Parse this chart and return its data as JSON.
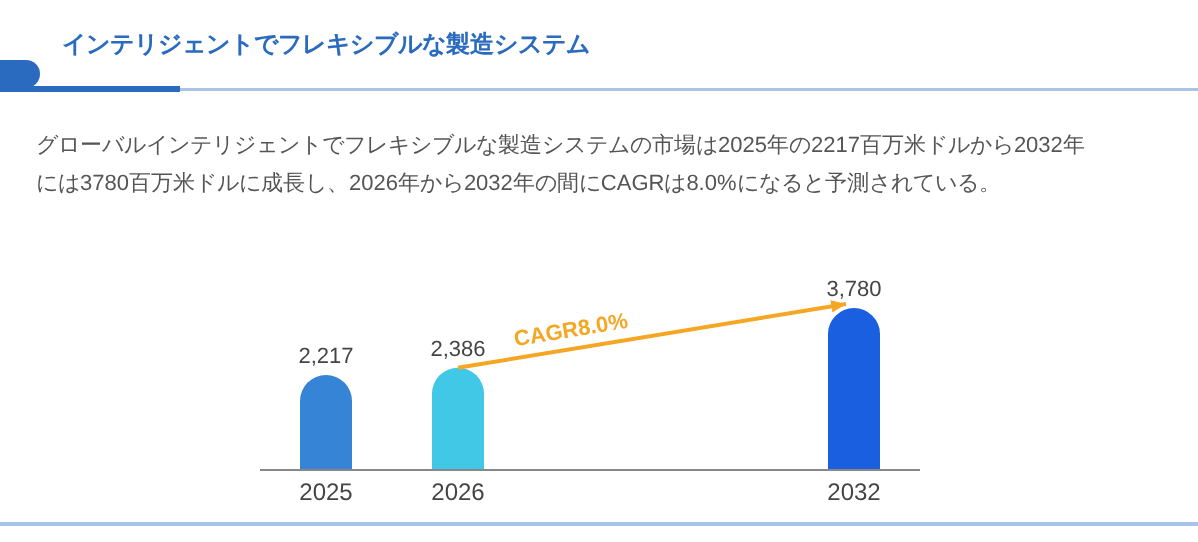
{
  "chart_data": {
    "type": "bar",
    "title": "インテリジェントでフレキシブルな製造システム",
    "subtitle": "グローバルインテリジェントでフレキシブルな製造システムの市場は2025年の2217百万米ドルから2032年には3780百万米ドルに成長し、2026年から2032年の間にCAGRは8.0%になると予測されている。",
    "categories": [
      "2025",
      "2026",
      null,
      null,
      "2032"
    ],
    "values": [
      2217,
      2386,
      null,
      null,
      3780
    ],
    "value_labels": [
      "2,217",
      "2,386",
      null,
      null,
      "3,780"
    ],
    "colors": [
      "#3584d6",
      "#40c8e6",
      null,
      null,
      "#1a5fe0"
    ],
    "annotations": [
      "CAGR8.0%"
    ]
  }
}
